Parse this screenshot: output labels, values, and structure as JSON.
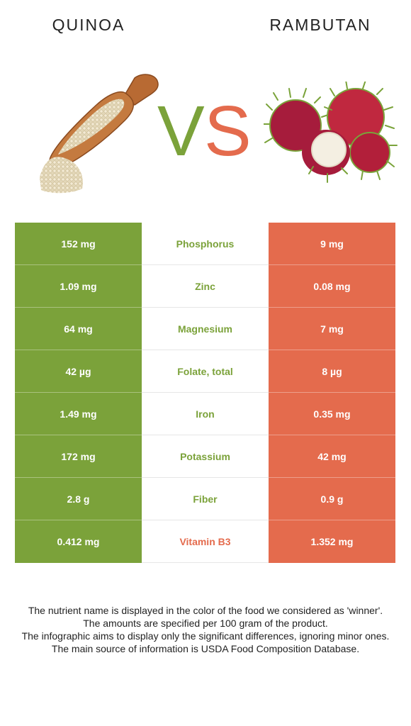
{
  "colors": {
    "winner_left": "#7ba23a",
    "winner_right": "#e46b4d"
  },
  "foods": {
    "left": "QUINOA",
    "right": "RAMBUTAN"
  },
  "vs": {
    "v": "V",
    "s": "S"
  },
  "icons": {
    "left": "quinoa-scoop-icon",
    "right": "rambutan-fruit-icon"
  },
  "chart_data": {
    "type": "table",
    "columns": [
      "QUINOA",
      "Nutrient",
      "RAMBUTAN"
    ],
    "rows": [
      {
        "left": "152 mg",
        "nutrient": "Phosphorus",
        "right": "9 mg",
        "winner": "left"
      },
      {
        "left": "1.09 mg",
        "nutrient": "Zinc",
        "right": "0.08 mg",
        "winner": "left"
      },
      {
        "left": "64 mg",
        "nutrient": "Magnesium",
        "right": "7 mg",
        "winner": "left"
      },
      {
        "left": "42 µg",
        "nutrient": "Folate, total",
        "right": "8 µg",
        "winner": "left"
      },
      {
        "left": "1.49 mg",
        "nutrient": "Iron",
        "right": "0.35 mg",
        "winner": "left"
      },
      {
        "left": "172 mg",
        "nutrient": "Potassium",
        "right": "42 mg",
        "winner": "left"
      },
      {
        "left": "2.8 g",
        "nutrient": "Fiber",
        "right": "0.9 g",
        "winner": "left"
      },
      {
        "left": "0.412 mg",
        "nutrient": "Vitamin B3",
        "right": "1.352 mg",
        "winner": "right"
      }
    ]
  },
  "footer": [
    "The nutrient name is displayed in the color of the food we considered as 'winner'.",
    "The amounts are specified per 100 gram of the product.",
    "The infographic aims to display only the significant differences, ignoring minor ones.",
    "The main source of information is USDA Food Composition Database."
  ]
}
